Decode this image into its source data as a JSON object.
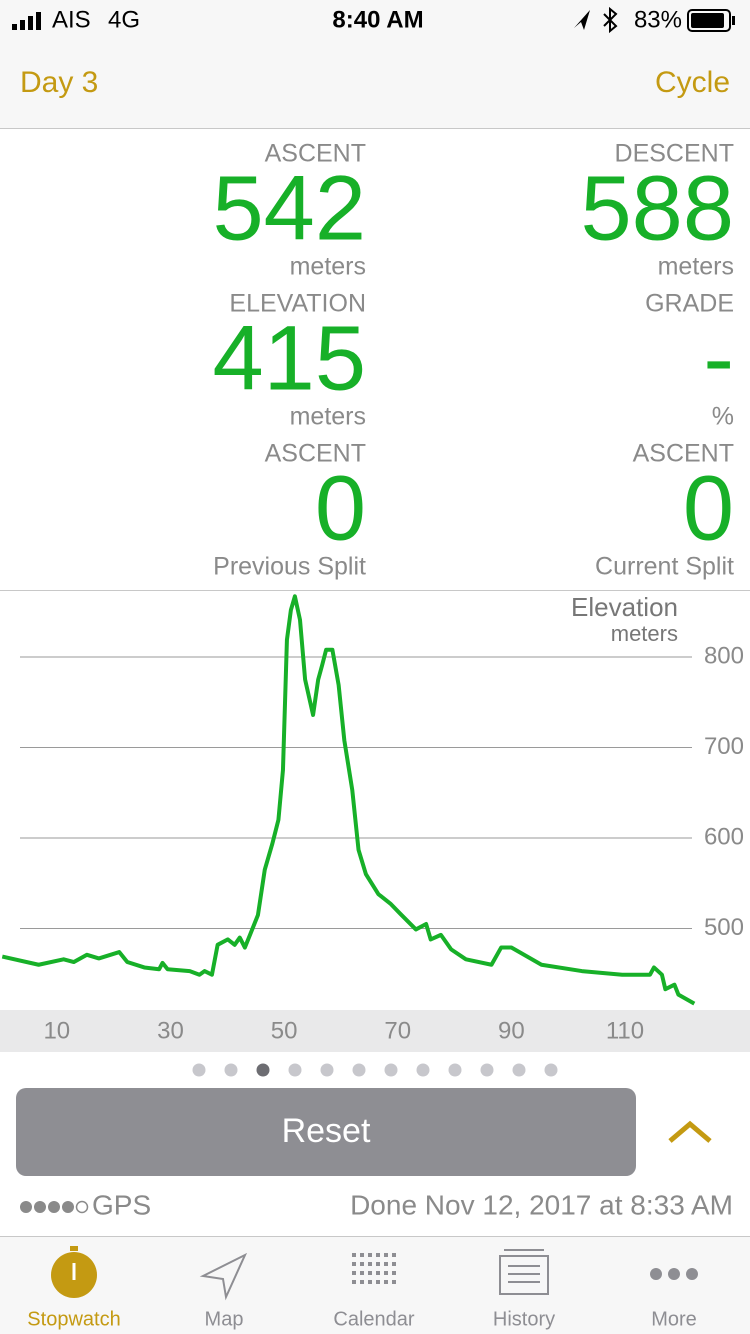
{
  "status_bar": {
    "carrier": "AIS",
    "network": "4G",
    "time": "8:40 AM",
    "battery": "83%"
  },
  "nav": {
    "left": "Day 3",
    "right": "Cycle"
  },
  "stats": [
    {
      "label": "ASCENT",
      "value": 542,
      "unit": "meters"
    },
    {
      "label": "DESCENT",
      "value": 588,
      "unit": "meters"
    },
    {
      "label": "ELEVATION",
      "value": 415,
      "unit": "meters"
    },
    {
      "label": "GRADE",
      "value": "-",
      "unit": "%"
    },
    {
      "label": "ASCENT",
      "value": 0,
      "unit": "Previous Split"
    },
    {
      "label": "ASCENT",
      "value": 0,
      "unit": "Current Split"
    }
  ],
  "chart_data": {
    "type": "line",
    "title": "Elevation",
    "y_label": "meters",
    "x": [
      0.4,
      6.8,
      11.2,
      13,
      15.3,
      17.4,
      21,
      22.4,
      25.4,
      28,
      28.6,
      29.5,
      33.4,
      35.1,
      36,
      37.3,
      38.3,
      40.1,
      41.3,
      42.2,
      43.1,
      44,
      45.4,
      46.6,
      47.9,
      49,
      49.8,
      50.5,
      51.2,
      51.9,
      52.8,
      53.7,
      55.1,
      56,
      56.7,
      57.4,
      58.5,
      59.6,
      60.6,
      62,
      63.1,
      64.4,
      66.6,
      68.8,
      70.5,
      73.2,
      75,
      75.8,
      77.6,
      79.4,
      82,
      86.5,
      88.2,
      90,
      95.3,
      102.4,
      109.5,
      114.4,
      115.1,
      116.5,
      117.1,
      118.7,
      119.4,
      122.2
    ],
    "series": [
      {
        "name": "Elevation",
        "color": "#17b028",
        "values": [
          469,
          460,
          466,
          463,
          471,
          467,
          474,
          463,
          457,
          455,
          462,
          455,
          453,
          449,
          453,
          449,
          482,
          488,
          482,
          490,
          479,
          493,
          515,
          565,
          593,
          620,
          675,
          819,
          852,
          867,
          841,
          775,
          736,
          775,
          791,
          808,
          808,
          769,
          708,
          653,
          587,
          560,
          538,
          527,
          516,
          499,
          505,
          488,
          493,
          477,
          466,
          460,
          479,
          479,
          460,
          453,
          449,
          449,
          457,
          449,
          433,
          438,
          427,
          417
        ]
      }
    ],
    "xlim": [
      0,
      132
    ],
    "ylim": [
      410,
      874
    ],
    "xticks": [
      10,
      30,
      50,
      70,
      90,
      110
    ],
    "yticks": [
      500,
      600,
      700,
      800
    ],
    "grid": true
  },
  "reset": "Reset",
  "gps": "GPS",
  "done": "Done Nov 12, 2017 at 8:33 AM",
  "tabs": [
    "Stopwatch",
    "Map",
    "Calendar",
    "History",
    "More"
  ]
}
